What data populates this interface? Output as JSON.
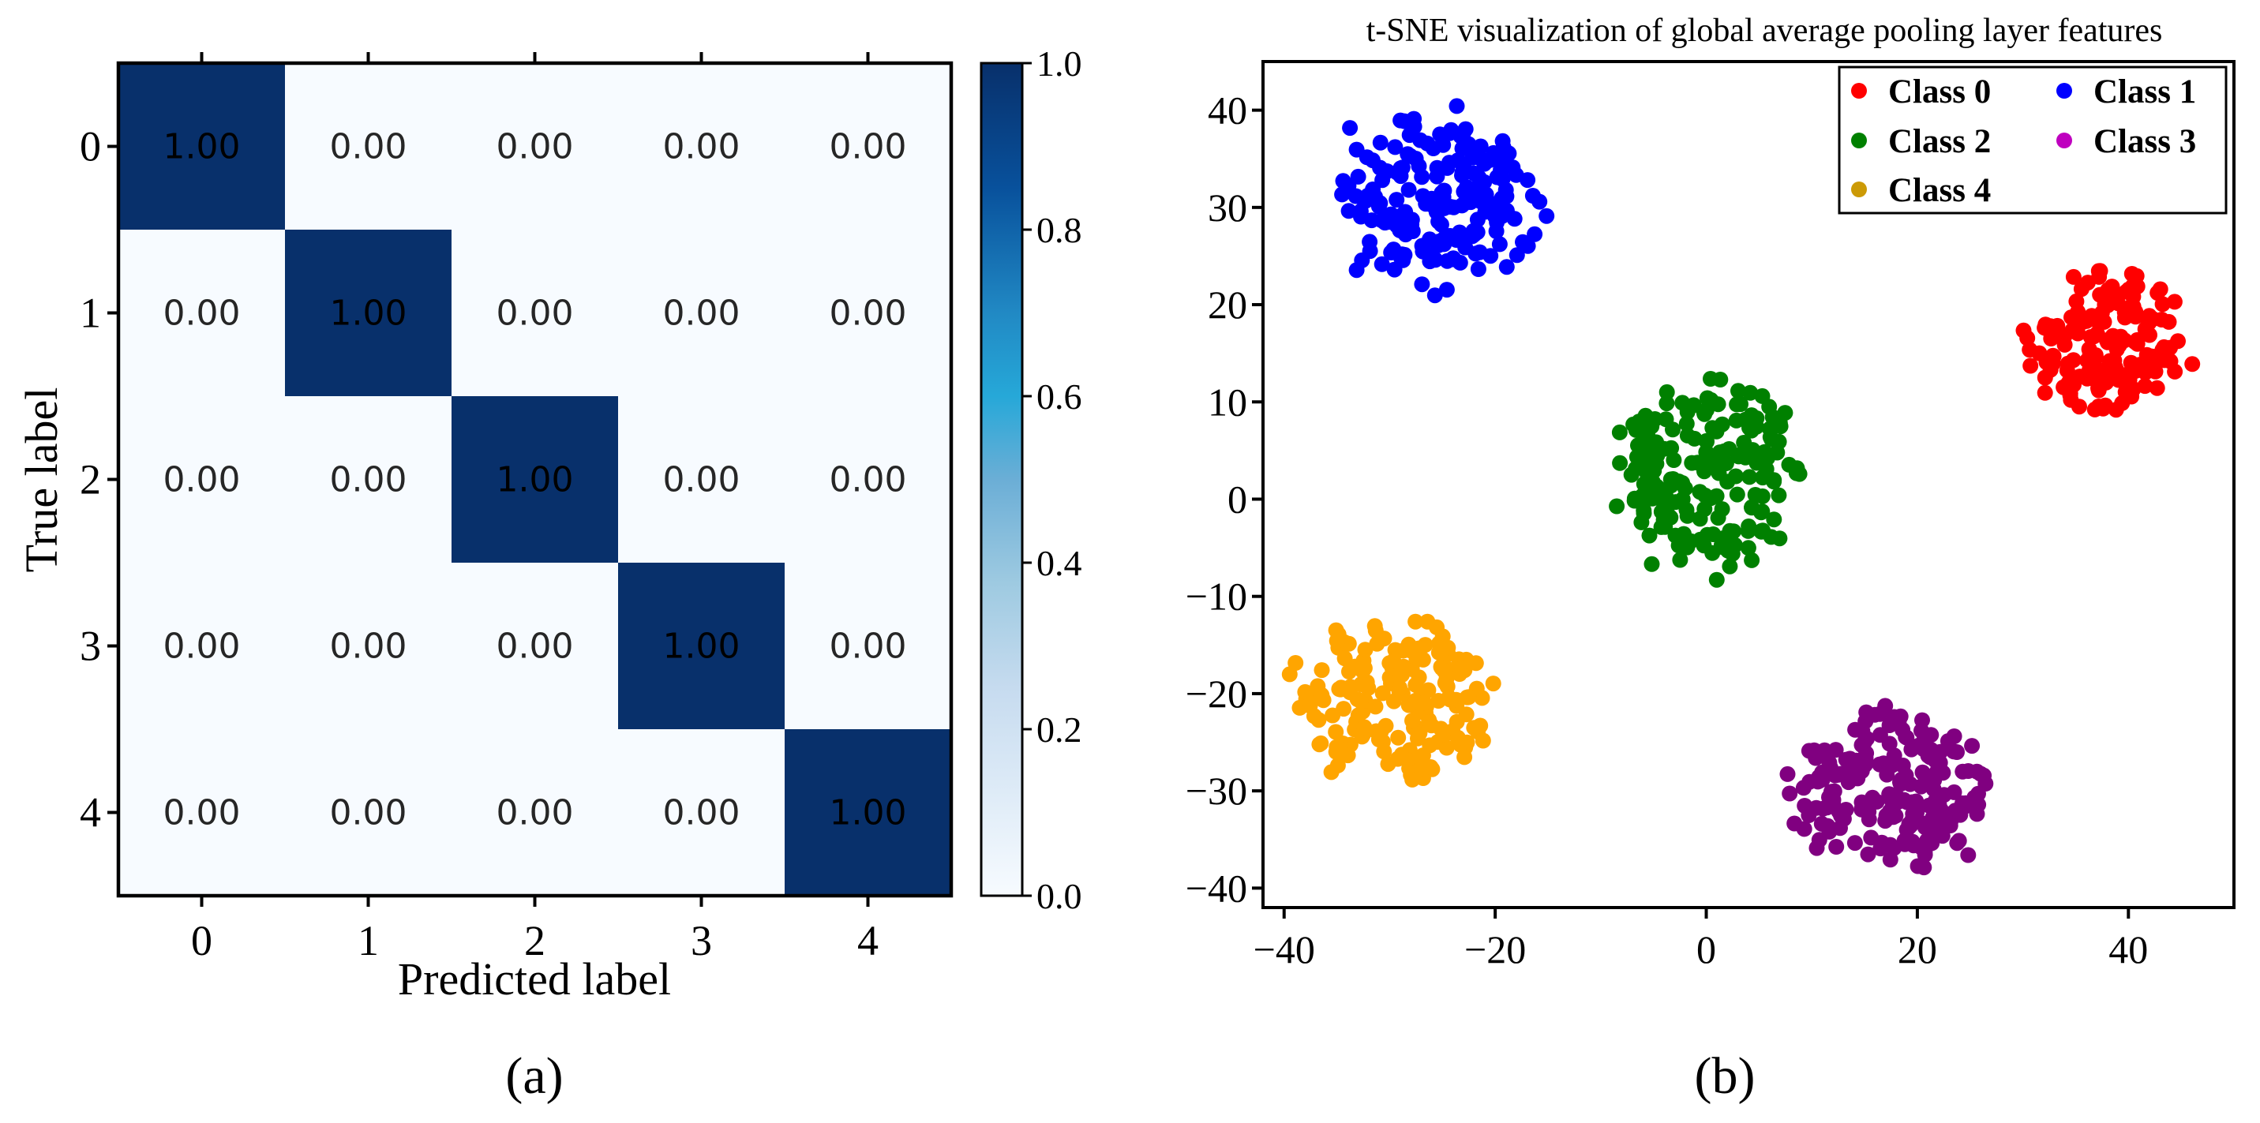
{
  "chart_data": [
    {
      "type": "heatmap",
      "title": "",
      "panel_label": "(a)",
      "xlabel": "Predicted label",
      "ylabel": "True label",
      "x_categories": [
        "0",
        "1",
        "2",
        "3",
        "4"
      ],
      "y_categories": [
        "0",
        "1",
        "2",
        "3",
        "4"
      ],
      "cell_labels": [
        [
          "1.00",
          "0.00",
          "0.00",
          "0.00",
          "0.00"
        ],
        [
          "0.00",
          "1.00",
          "0.00",
          "0.00",
          "0.00"
        ],
        [
          "0.00",
          "0.00",
          "1.00",
          "0.00",
          "0.00"
        ],
        [
          "0.00",
          "0.00",
          "0.00",
          "1.00",
          "0.00"
        ],
        [
          "0.00",
          "0.00",
          "0.00",
          "0.00",
          "1.00"
        ]
      ],
      "values": [
        [
          1,
          0,
          0,
          0,
          0
        ],
        [
          0,
          1,
          0,
          0,
          0
        ],
        [
          0,
          0,
          1,
          0,
          0
        ],
        [
          0,
          0,
          0,
          1,
          0
        ],
        [
          0,
          0,
          0,
          0,
          1
        ]
      ],
      "colorbar": {
        "range": [
          0.0,
          1.0
        ],
        "ticks": [
          "0.0",
          "0.2",
          "0.4",
          "0.6",
          "0.8",
          "1.0"
        ],
        "colormap": "Blues",
        "low_color": "#f7fbff",
        "high_color": "#08306b"
      }
    },
    {
      "type": "scatter",
      "title": "t-SNE visualization of global average pooling layer features",
      "panel_label": "(b)",
      "xlabel": "",
      "ylabel": "",
      "xlim": [
        -42,
        50
      ],
      "ylim": [
        -42,
        45
      ],
      "xticks": [
        -40,
        -20,
        0,
        20,
        40
      ],
      "yticks": [
        -40,
        -30,
        -20,
        -10,
        0,
        10,
        20,
        30,
        40
      ],
      "legend_position": "top-right",
      "series": [
        {
          "name": "Class 0",
          "color": "#ff0000",
          "marker_color": "#ff0000",
          "center": [
            38,
            16
          ],
          "spread": [
            7.5,
            7.5
          ],
          "count": 170
        },
        {
          "name": "Class 1",
          "color": "#0000ff",
          "marker_color": "#0000ff",
          "center": [
            -25.5,
            31
          ],
          "spread": [
            10,
            9.5
          ],
          "count": 190
        },
        {
          "name": "Class 2",
          "color": "#008000",
          "marker_color": "#008000",
          "center": [
            0.5,
            2.5
          ],
          "spread": [
            9,
            10
          ],
          "count": 190
        },
        {
          "name": "Class 3",
          "color": "#bf00bf",
          "marker_color": "#800080",
          "center": [
            17,
            -30
          ],
          "spread": [
            9.5,
            8
          ],
          "count": 200
        },
        {
          "name": "Class 4",
          "color": "#cc9a06",
          "marker_color": "#ffa500",
          "center": [
            -29.5,
            -21
          ],
          "spread": [
            9.5,
            8.5
          ],
          "count": 180
        }
      ]
    }
  ]
}
